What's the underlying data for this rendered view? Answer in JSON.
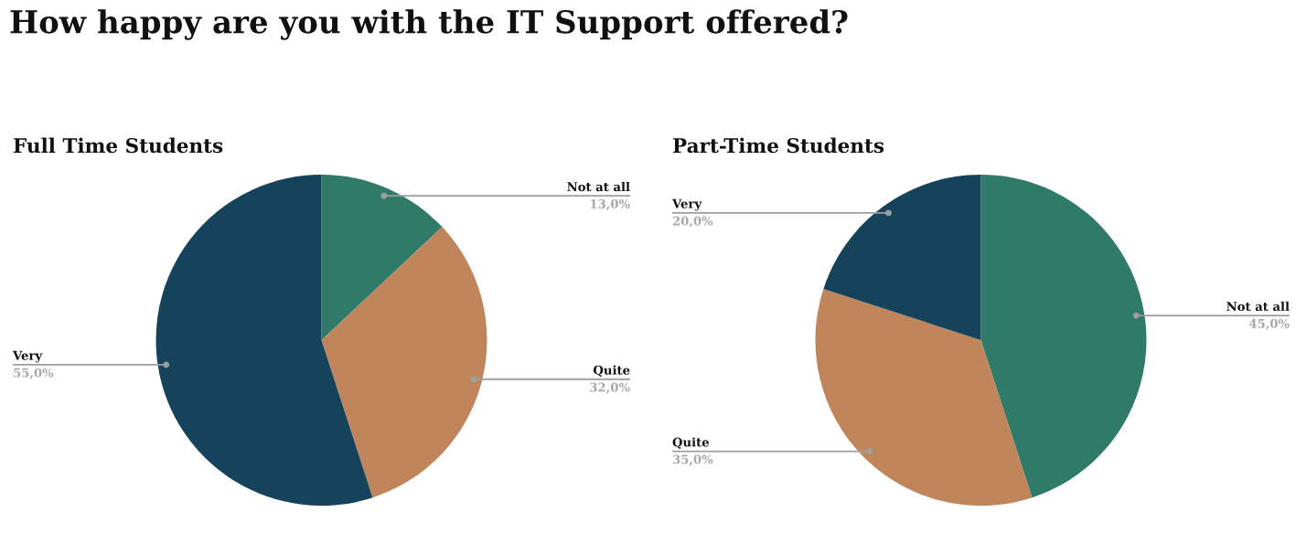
{
  "chart_data": [
    {
      "type": "pie",
      "title": "How happy are you with the IT Support offered?",
      "subtitle": "Full Time Students",
      "categories": [
        "Not at all",
        "Quite",
        "Very"
      ],
      "values": [
        13,
        32,
        55
      ],
      "value_labels": [
        "13,0%",
        "32,0%",
        "55,0%"
      ],
      "colors": [
        "#2f7a69",
        "#c0855a",
        "#16435c"
      ]
    },
    {
      "type": "pie",
      "subtitle": "Part-Time Students",
      "categories": [
        "Not at all",
        "Quite",
        "Very"
      ],
      "values": [
        45,
        35,
        20
      ],
      "value_labels": [
        "45,0%",
        "35,0%",
        "20,0%"
      ],
      "colors": [
        "#2f7a69",
        "#c0855a",
        "#16435c"
      ]
    }
  ]
}
